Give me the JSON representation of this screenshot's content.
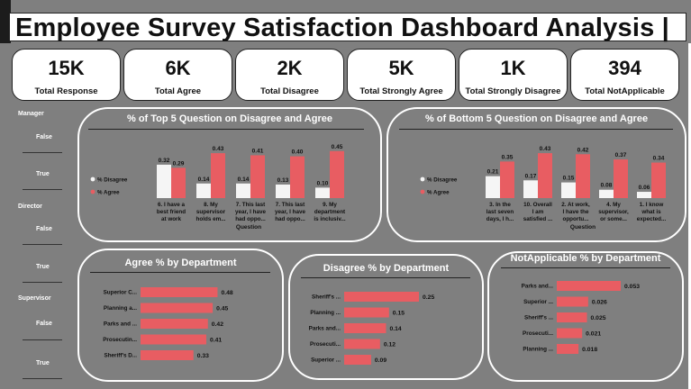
{
  "title": "Employee Survey Satisfaction Dashboard Analysis |",
  "kpis": [
    {
      "value": "15K",
      "label": "Total Response"
    },
    {
      "value": "6K",
      "label": "Total Agree"
    },
    {
      "value": "2K",
      "label": "Total Disagree"
    },
    {
      "value": "5K",
      "label": "Total Strongly Agree"
    },
    {
      "value": "1K",
      "label": "Total Strongly Disagree"
    },
    {
      "value": "394",
      "label": "Total NotApplicable"
    }
  ],
  "slicers": {
    "manager": {
      "title": "Manager",
      "options": [
        "False",
        "True"
      ]
    },
    "director": {
      "title": "Director",
      "options": [
        "False",
        "True"
      ]
    },
    "supervisor": {
      "title": "Supervisor",
      "options": [
        "False",
        "True"
      ]
    }
  },
  "colors": {
    "disagree": "#f5f5f5",
    "agree": "#e85d62",
    "bar": "#e85d62"
  },
  "chart_data": [
    {
      "type": "bar",
      "title": "% of Top 5 Question on Disagree and Agree",
      "xlabel": "Question",
      "categories": [
        [
          "6. I have a",
          "best friend",
          "at work"
        ],
        [
          "8. My",
          "supervisor",
          "holds em..."
        ],
        [
          "7. This last",
          "year, I have",
          "had oppo..."
        ],
        [
          "7. This last",
          "year, I have",
          "had oppo..."
        ],
        [
          "9. My",
          "department",
          "is inclusiv..."
        ]
      ],
      "series": [
        {
          "name": "% Disagree",
          "values": [
            0.32,
            0.14,
            0.14,
            0.13,
            0.1
          ],
          "labels": [
            "0.32",
            "0.14",
            "0.14",
            "0.13",
            "0.10"
          ]
        },
        {
          "name": "% Agree",
          "values": [
            0.29,
            0.43,
            0.41,
            0.4,
            0.45
          ],
          "labels": [
            "0.29",
            "0.43",
            "0.41",
            "0.40",
            "0.45"
          ]
        }
      ],
      "legend": "left"
    },
    {
      "type": "bar",
      "title": "% of Bottom 5 Question on Disagree and Agree",
      "xlabel": "Question",
      "categories": [
        [
          "3. In the",
          "last seven",
          "days, I h..."
        ],
        [
          "10. Overall",
          "I am",
          "satisfied ..."
        ],
        [
          "2. At work,",
          "I have the",
          "opportu..."
        ],
        [
          "4. My",
          "supervisor,",
          "or some..."
        ],
        [
          "1. I know",
          "what is",
          "expected..."
        ]
      ],
      "series": [
        {
          "name": "% Disagree",
          "values": [
            0.21,
            0.17,
            0.15,
            0.08,
            0.06
          ],
          "labels": [
            "0.21",
            "0.17",
            "0.15",
            "0.08",
            "0.06"
          ]
        },
        {
          "name": "% Agree",
          "values": [
            0.35,
            0.43,
            0.42,
            0.37,
            0.34
          ],
          "labels": [
            "0.35",
            "0.43",
            "0.42",
            "0.37",
            "0.34"
          ]
        }
      ],
      "legend": "left"
    },
    {
      "type": "bar",
      "orientation": "horizontal",
      "title": "Agree % by Department",
      "categories": [
        "Superior C...",
        "Planning a...",
        "Parks and ...",
        "Prosecutin...",
        "Sheriff's D..."
      ],
      "values": [
        0.48,
        0.45,
        0.42,
        0.41,
        0.33
      ],
      "labels": [
        "0.48",
        "0.45",
        "0.42",
        "0.41",
        "0.33"
      ]
    },
    {
      "type": "bar",
      "orientation": "horizontal",
      "title": "Disagree % by Department",
      "categories": [
        "Sheriff's ...",
        "Planning ...",
        "Parks and...",
        "Prosecuti...",
        "Superior ..."
      ],
      "values": [
        0.25,
        0.15,
        0.14,
        0.12,
        0.09
      ],
      "labels": [
        "0.25",
        "0.15",
        "0.14",
        "0.12",
        "0.09"
      ]
    },
    {
      "type": "bar",
      "orientation": "horizontal",
      "title": "NotApplicable % by Department",
      "categories": [
        "Parks and...",
        "Superior ...",
        "Sheriff's ...",
        "Prosecuti...",
        "Planning ..."
      ],
      "values": [
        0.053,
        0.026,
        0.025,
        0.021,
        0.018
      ],
      "labels": [
        "0.053",
        "0.026",
        "0.025",
        "0.021",
        "0.018"
      ]
    }
  ]
}
